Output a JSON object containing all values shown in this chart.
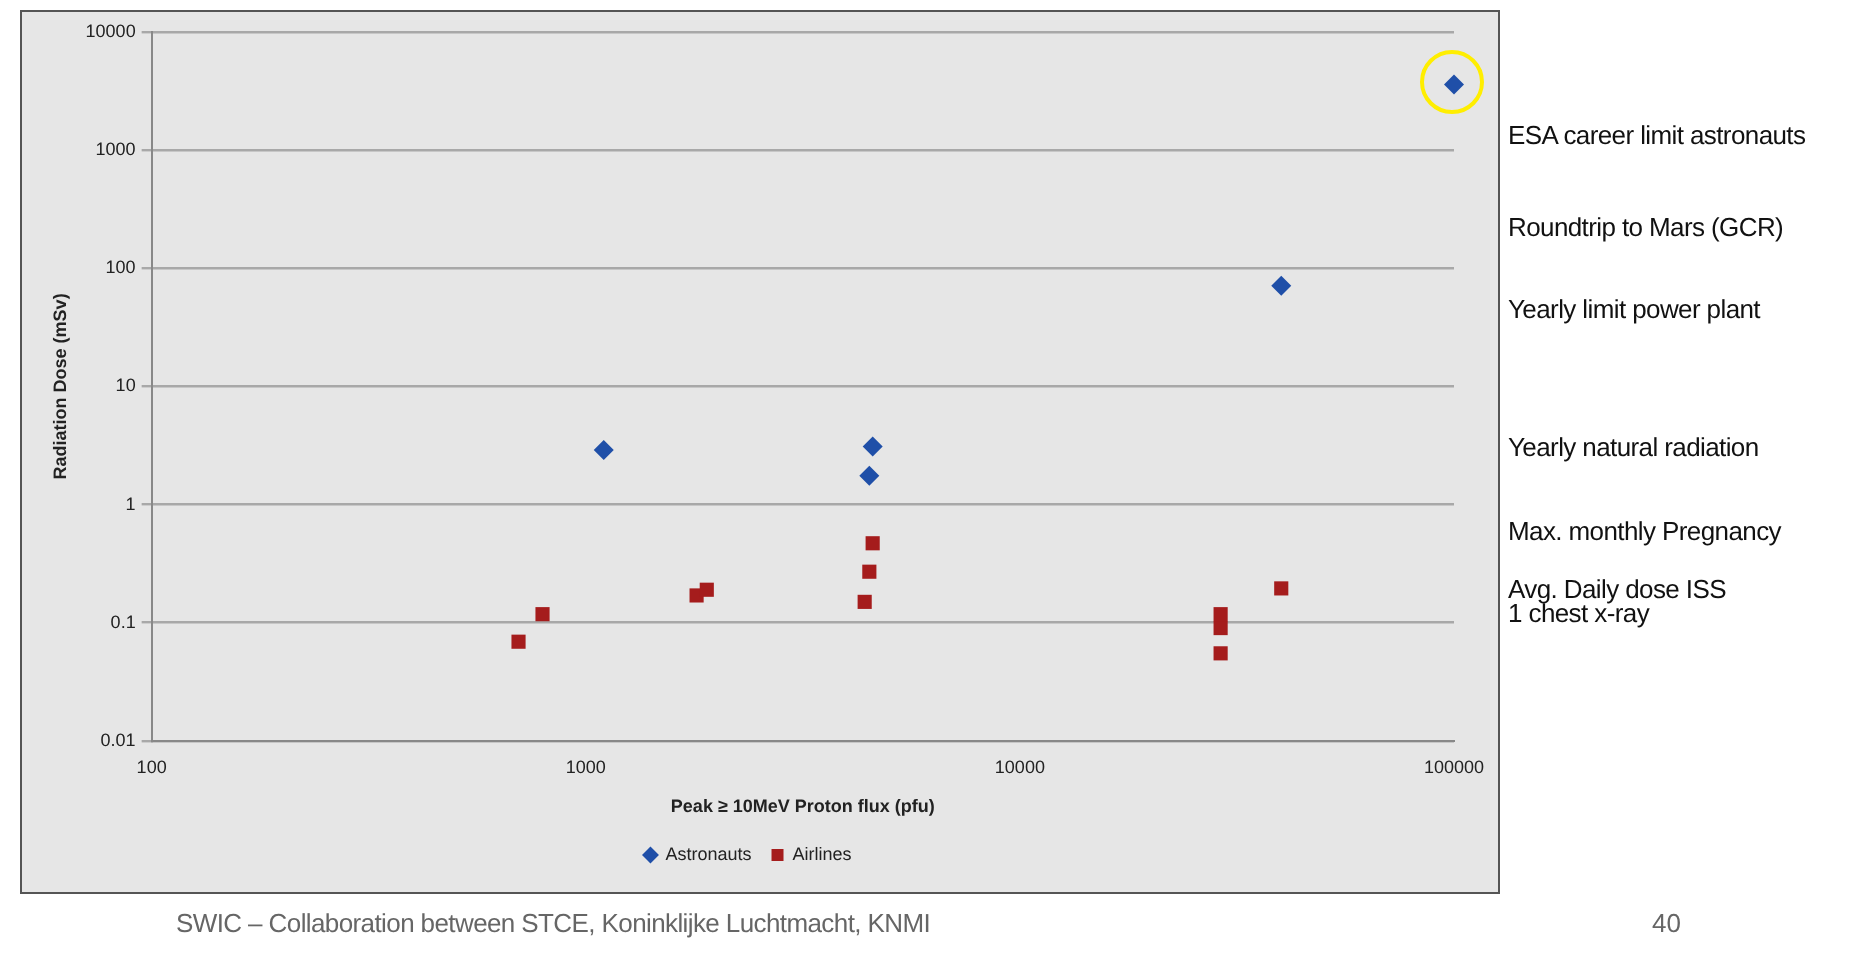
{
  "chart_data": {
    "type": "scatter",
    "xlabel": "Peak ≥ 10MeV Proton flux (pfu)",
    "ylabel": "Radiation Dose (mSv)",
    "log": "xy",
    "xlim": [
      100,
      100000
    ],
    "xticks": [
      100,
      1000,
      10000,
      100000
    ],
    "ylim": [
      0.01,
      10000
    ],
    "yticks": [
      0.01,
      0.1,
      1,
      10,
      100,
      1000,
      10000
    ],
    "grid": "y",
    "legend": "bottom",
    "series": [
      {
        "name": "Astronauts",
        "color": "#1f4fa8",
        "marker": "diamond",
        "x": [
          1100,
          4580,
          4500,
          40000,
          100000
        ],
        "values": [
          2.9,
          3.1,
          1.75,
          71,
          3600
        ]
      },
      {
        "name": "Airlines",
        "color": "#a51c1c",
        "marker": "square",
        "x": [
          700,
          795,
          1800,
          1900,
          4390,
          4500,
          4580,
          29000,
          29000,
          29000,
          40000
        ],
        "values": [
          0.069,
          0.118,
          0.17,
          0.19,
          0.15,
          0.27,
          0.47,
          0.055,
          0.09,
          0.118,
          0.195
        ]
      }
    ],
    "annotations": [
      "ESA career limit astronauts",
      "Roundtrip to Mars (GCR)",
      "Yearly limit power plant",
      "Yearly natural radiation",
      "Max. monthly Pregnancy",
      "Avg. Daily dose ISS\n1 chest x-ray",
      "SWIC – Collaboration between STCE, Koninklijke Luchtmacht, KNMI",
      "40"
    ]
  }
}
